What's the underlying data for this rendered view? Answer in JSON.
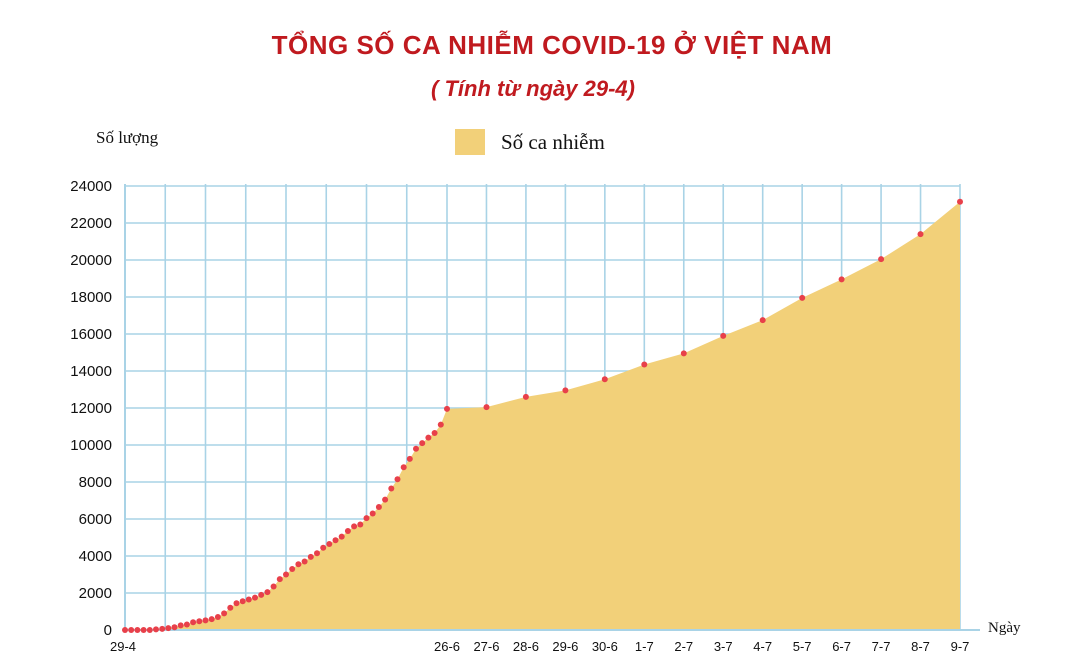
{
  "chart_data": {
    "type": "area",
    "title": "TỔNG SỐ CA NHIỄM COVID-19 Ở VIỆT NAM",
    "subtitle": "( Tính từ ngày 29-4)",
    "xlabel": "Ngày",
    "ylabel": "Số lượng",
    "ylim": [
      0,
      24000
    ],
    "yticks": [
      0,
      2000,
      4000,
      6000,
      8000,
      10000,
      12000,
      14000,
      16000,
      18000,
      20000,
      22000,
      24000
    ],
    "x_tick_labels": [
      "29-4",
      "26-6",
      "27-6",
      "28-6",
      "29-6",
      "30-6",
      "1-7",
      "2-7",
      "3-7",
      "4-7",
      "5-7",
      "6-7",
      "7-7",
      "8-7",
      "9-7"
    ],
    "grid": true,
    "legend_position": "top-center",
    "colors": {
      "area": "#f2d079",
      "points": "#e8404a",
      "grid": "#a9d3e6",
      "title": "#c01a1f"
    },
    "series": [
      {
        "name": "Số ca nhiễm",
        "daily_values": [
          0,
          0,
          0,
          0,
          0,
          30,
          60,
          100,
          150,
          250,
          300,
          420,
          470,
          520,
          590,
          700,
          900,
          1200,
          1450,
          1550,
          1650,
          1750,
          1900,
          2050,
          2350,
          2750,
          3000,
          3300,
          3550,
          3700,
          3950,
          4150,
          4450,
          4650,
          4850,
          5050,
          5350,
          5600,
          5700,
          6050,
          6300,
          6650,
          7050,
          7650,
          8150,
          8800,
          9250,
          9800,
          10100,
          10400,
          10650,
          11100,
          11950
        ],
        "x": [
          "26-6",
          "27-6",
          "28-6",
          "29-6",
          "30-6",
          "1-7",
          "2-7",
          "3-7",
          "4-7",
          "5-7",
          "6-7",
          "7-7",
          "8-7",
          "9-7"
        ],
        "values": [
          11950,
          12050,
          12600,
          12950,
          13550,
          14350,
          14950,
          15900,
          16750,
          17950,
          18950,
          20050,
          21400,
          23150
        ]
      }
    ]
  }
}
